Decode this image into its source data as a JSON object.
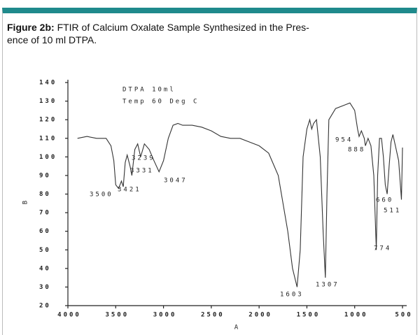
{
  "caption": {
    "label": "Figure 2b:",
    "lines": [
      "FTIR of Calcium Oxalate Sample Synthesized in the Pres-",
      "ence of 10 ml DTPA."
    ]
  },
  "chart_data": {
    "type": "line",
    "x_label": "A",
    "y_label": "B",
    "annotations": [
      "DTPA 10ml",
      "Temp 60 Deg C",
      "3500",
      "3421",
      "3331",
      "3239",
      "3047",
      "1603",
      "1307",
      "954",
      "888",
      "774",
      "660",
      "511"
    ],
    "xlim": [
      4000,
      500
    ],
    "ylim": [
      20,
      140
    ],
    "xticks": [
      4000,
      3500,
      3000,
      2500,
      2000,
      1500,
      1000,
      500
    ],
    "yticks": [
      140,
      130,
      120,
      110,
      100,
      90,
      80,
      70,
      60,
      50,
      40,
      30,
      20
    ],
    "series": [
      {
        "color": "#333333",
        "x": [
          3900,
          3800,
          3700,
          3600,
          3550,
          3520,
          3500,
          3470,
          3440,
          3421,
          3400,
          3380,
          3350,
          3331,
          3300,
          3270,
          3239,
          3200,
          3150,
          3100,
          3047,
          3000,
          2950,
          2900,
          2850,
          2800,
          2700,
          2600,
          2500,
          2400,
          2300,
          2200,
          2100,
          2000,
          1900,
          1800,
          1700,
          1650,
          1603,
          1570,
          1540,
          1500,
          1470,
          1450,
          1430,
          1400,
          1360,
          1330,
          1307,
          1290,
          1270,
          1200,
          1100,
          1050,
          1000,
          970,
          954,
          930,
          900,
          888,
          860,
          830,
          800,
          774,
          760,
          740,
          720,
          700,
          680,
          660,
          640,
          620,
          600,
          570,
          540,
          511,
          500
        ],
        "values": [
          110,
          111,
          110,
          110,
          106,
          98,
          85,
          83,
          87,
          84,
          97,
          101,
          95,
          90,
          104,
          107,
          100,
          107,
          104,
          98,
          92,
          98,
          110,
          117,
          118,
          117,
          117,
          116,
          114,
          111,
          110,
          110,
          108,
          106,
          102,
          90,
          60,
          40,
          30,
          50,
          100,
          115,
          120,
          115,
          118,
          120,
          100,
          60,
          35,
          80,
          120,
          126,
          128,
          129,
          125,
          115,
          111,
          114,
          110,
          106,
          110,
          106,
          90,
          50,
          90,
          110,
          110,
          100,
          85,
          80,
          95,
          108,
          112,
          105,
          98,
          77,
          105
        ]
      }
    ]
  }
}
